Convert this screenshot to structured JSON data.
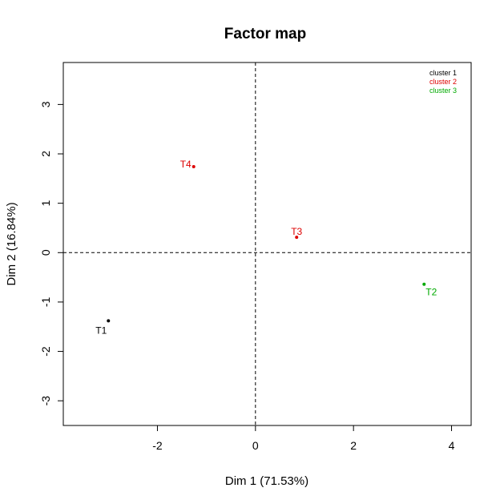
{
  "chart_data": {
    "type": "scatter",
    "title": "Factor map",
    "xlabel": "Dim 1 (71.53%)",
    "ylabel": "Dim 2 (16.84%)",
    "xlim": [
      -3.92,
      4.4
    ],
    "ylim": [
      -3.5,
      3.85
    ],
    "xticks": [
      -2,
      0,
      2,
      4
    ],
    "yticks": [
      -3,
      -2,
      -1,
      0,
      1,
      2,
      3
    ],
    "reference_lines": {
      "x": 0,
      "y": 0,
      "style": "dashed"
    },
    "legend": {
      "placement": "top-right",
      "entries": [
        {
          "label": "cluster 1",
          "color": "#000000"
        },
        {
          "label": "cluster 2",
          "color": "#dd0000"
        },
        {
          "label": "cluster 3",
          "color": "#00aa00"
        }
      ]
    },
    "points": [
      {
        "label": "T1",
        "x": -3.0,
        "y": -1.38,
        "cluster": 1,
        "color": "#000000",
        "label_pos": "bottom-left"
      },
      {
        "label": "T4",
        "x": -1.26,
        "y": 1.74,
        "cluster": 2,
        "color": "#dd0000",
        "label_pos": "left"
      },
      {
        "label": "T3",
        "x": 0.84,
        "y": 0.31,
        "cluster": 2,
        "color": "#dd0000",
        "label_pos": "top"
      },
      {
        "label": "T2",
        "x": 3.44,
        "y": -0.64,
        "cluster": 3,
        "color": "#00aa00",
        "label_pos": "bottom-right"
      }
    ]
  }
}
